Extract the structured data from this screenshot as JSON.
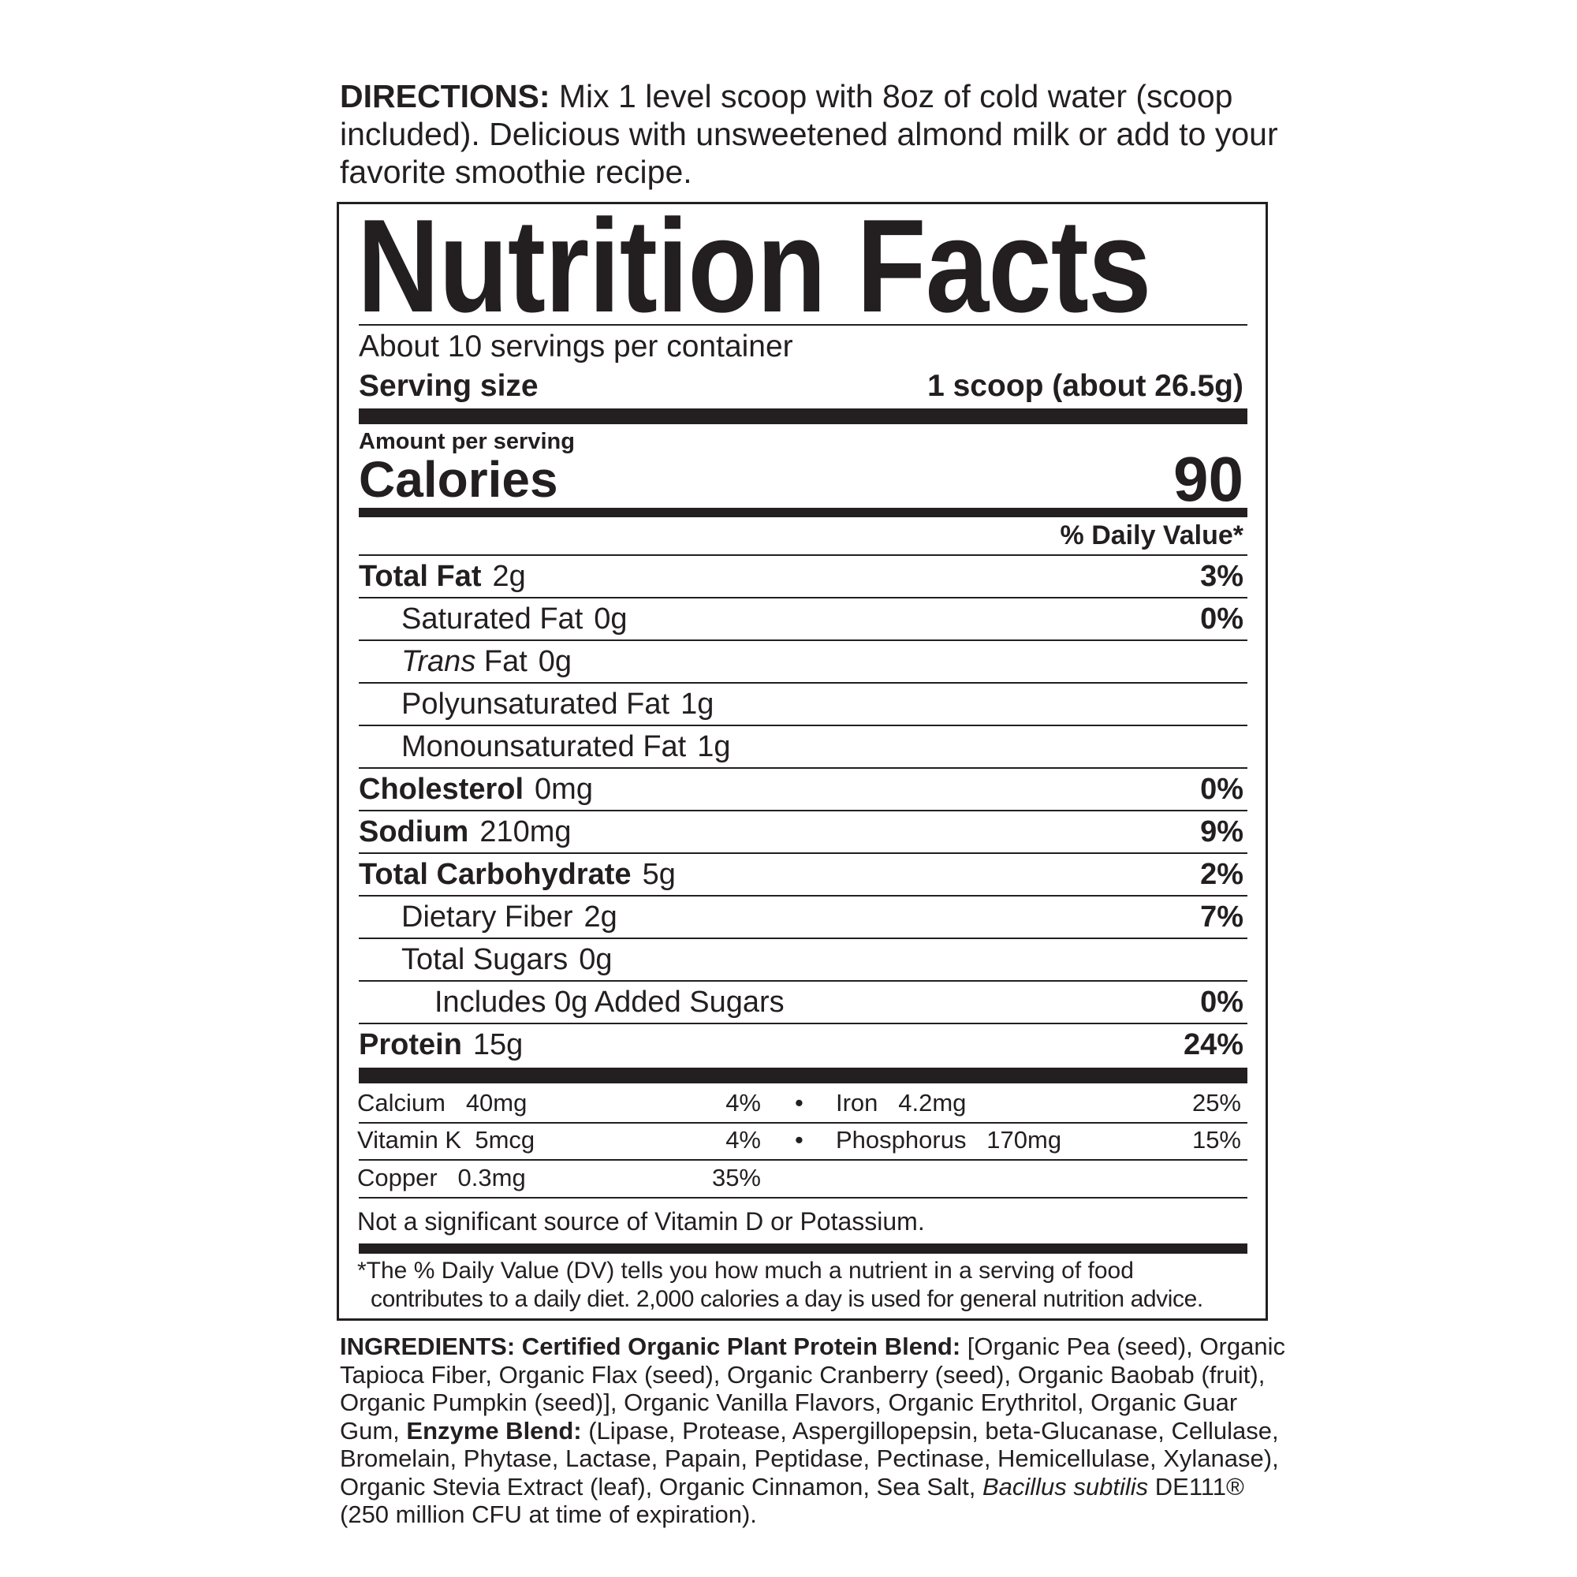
{
  "directions": {
    "label": "DIRECTIONS:",
    "text": " Mix 1 level scoop with 8oz of cold water (scoop included). Delicious with unsweetened almond milk or add to your favorite smoothie recipe."
  },
  "label": {
    "title": "Nutrition Facts",
    "servings": "About 10 servings per container",
    "serving_size_label": "Serving size",
    "serving_size_value": "1 scoop (about 26.5g)",
    "amount_per_serving": "Amount per serving",
    "calories_label": "Calories",
    "calories_value": "90",
    "dv_header": "% Daily Value*",
    "nutrients": [
      {
        "name": "Total Fat",
        "amount": "2g",
        "dv": "3%"
      },
      {
        "name": "Saturated Fat",
        "amount": "0g",
        "dv": "0%"
      },
      {
        "name": "Trans",
        "name_rest": " Fat",
        "amount": "0g",
        "dv": ""
      },
      {
        "name": "Polyunsaturated Fat",
        "amount": "1g",
        "dv": ""
      },
      {
        "name": "Monounsaturated Fat",
        "amount": "1g",
        "dv": ""
      },
      {
        "name": "Cholesterol",
        "amount": "0mg",
        "dv": "0%"
      },
      {
        "name": "Sodium",
        "amount": "210mg",
        "dv": "9%"
      },
      {
        "name": "Total Carbohydrate",
        "amount": "5g",
        "dv": "2%"
      },
      {
        "name": "Dietary Fiber",
        "amount": "2g",
        "dv": "7%"
      },
      {
        "name": "Total Sugars",
        "amount": "0g",
        "dv": ""
      },
      {
        "name": "Includes 0g Added Sugars",
        "amount": "",
        "dv": "0%"
      },
      {
        "name": "Protein",
        "amount": "15g",
        "dv": "24%"
      }
    ],
    "vitamins": [
      {
        "name": "Calcium",
        "amount": "40mg",
        "dv": "4%"
      },
      {
        "name": "Iron",
        "amount": "4.2mg",
        "dv": "25%"
      },
      {
        "name": "Vitamin K",
        "amount": "5mcg",
        "dv": "4%"
      },
      {
        "name": "Phosphorus",
        "amount": "170mg",
        "dv": "15%"
      },
      {
        "name": "Copper",
        "amount": "0.3mg",
        "dv": "35%"
      }
    ],
    "bullet": "•",
    "not_significant": "Not a significant source of Vitamin D or Potassium.",
    "footnote_line1": "*The % Daily Value (DV) tells you how much a nutrient in a serving of food",
    "footnote_line2": "contributes to a daily diet. 2,000 calories a day is used for general nutrition advice."
  },
  "ingredients": {
    "label": "INGREDIENTS:",
    "blend1_label": " Certified Organic Plant Protein Blend:",
    "text1": " [Organic Pea (seed), Organic Tapioca Fiber, Organic Flax (seed), Organic Cranberry (seed), Organic Baobab (fruit), Organic Pumpkin (seed)], Organic Vanilla Flavors, Organic Erythritol, Organic Guar Gum, ",
    "blend2_label": "Enzyme Blend:",
    "text2": " (Lipase, Protease, Aspergillopepsin, beta-Glucanase, Cellulase, Bromelain, Phytase, Lactase, Papain, Peptidase, Pectinase, Hemicellulase, Xylanase), Organic Stevia Extract (leaf), Organic Cinnamon, Sea Salt, ",
    "italic": "Bacillus subtilis",
    "text3": " DE111® (250 million CFU at time of expiration)."
  }
}
